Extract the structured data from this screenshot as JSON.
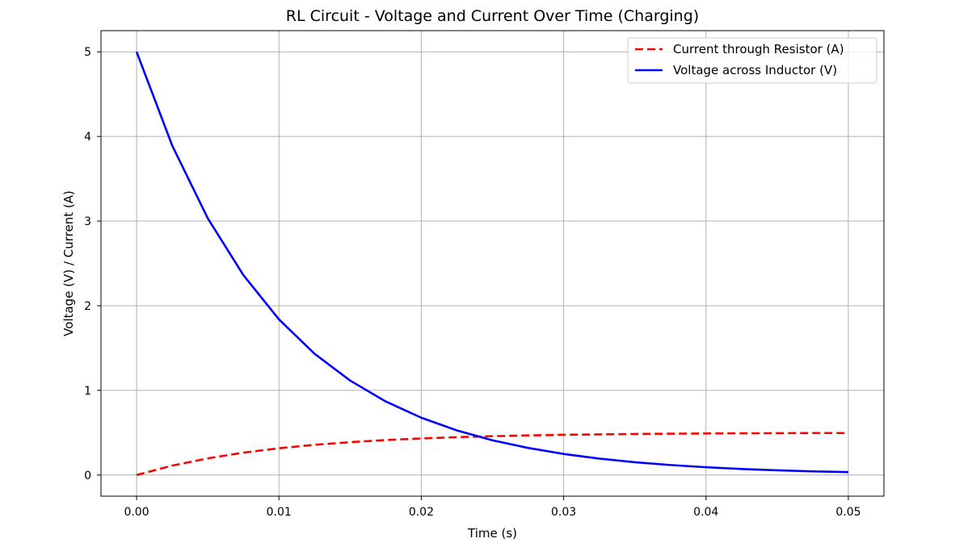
{
  "chart_data": {
    "type": "line",
    "title": "RL Circuit - Voltage and Current Over Time (Charging)",
    "xlabel": "Time (s)",
    "ylabel": "Voltage (V) / Current (A)",
    "xlim": [
      -0.0025,
      0.0525
    ],
    "ylim": [
      -0.25,
      5.25
    ],
    "xticks": [
      0.0,
      0.01,
      0.02,
      0.03,
      0.04,
      0.05
    ],
    "xtick_labels": [
      "0.00",
      "0.01",
      "0.02",
      "0.03",
      "0.04",
      "0.05"
    ],
    "yticks": [
      0,
      1,
      2,
      3,
      4,
      5
    ],
    "ytick_labels": [
      "0",
      "1",
      "2",
      "3",
      "4",
      "5"
    ],
    "grid": true,
    "legend_position": "top-right",
    "series": [
      {
        "name": "Current through Resistor (A)",
        "color": "#ff0000",
        "style": "dashed",
        "x": [
          0.0,
          0.0025,
          0.005,
          0.0075,
          0.01,
          0.0125,
          0.015,
          0.0175,
          0.02,
          0.0225,
          0.025,
          0.0275,
          0.03,
          0.0325,
          0.035,
          0.0375,
          0.04,
          0.0425,
          0.045,
          0.0475,
          0.05
        ],
        "values": [
          0.0,
          0.111,
          0.197,
          0.264,
          0.316,
          0.357,
          0.388,
          0.413,
          0.432,
          0.447,
          0.459,
          0.468,
          0.475,
          0.48,
          0.485,
          0.488,
          0.491,
          0.493,
          0.494,
          0.496,
          0.496
        ]
      },
      {
        "name": "Voltage across Inductor (V)",
        "color": "#0000ff",
        "style": "solid",
        "x": [
          0.0,
          0.0025,
          0.005,
          0.0075,
          0.01,
          0.0125,
          0.015,
          0.0175,
          0.02,
          0.0225,
          0.025,
          0.0275,
          0.03,
          0.0325,
          0.035,
          0.0375,
          0.04,
          0.0425,
          0.045,
          0.0475,
          0.05
        ],
        "values": [
          5.0,
          3.894,
          3.033,
          2.362,
          1.839,
          1.433,
          1.116,
          0.869,
          0.677,
          0.527,
          0.41,
          0.32,
          0.249,
          0.194,
          0.151,
          0.118,
          0.092,
          0.071,
          0.056,
          0.043,
          0.034
        ]
      }
    ]
  }
}
